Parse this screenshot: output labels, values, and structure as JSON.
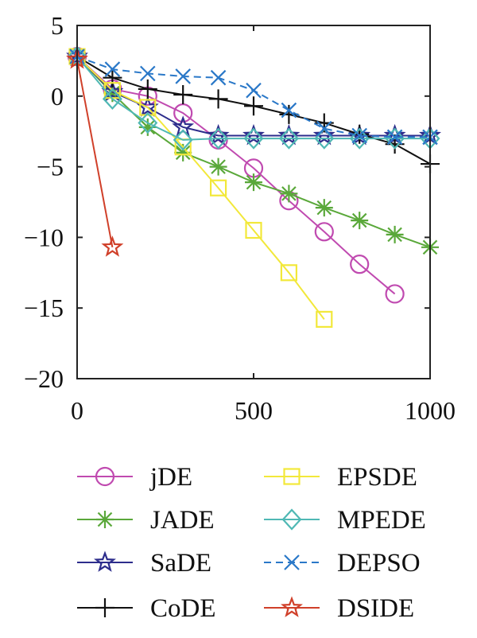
{
  "chart_data": {
    "type": "line",
    "title": "",
    "xlabel": "",
    "ylabel": "",
    "xlim": [
      0,
      1000
    ],
    "ylim": [
      -20,
      5
    ],
    "x_ticks": [
      0,
      500,
      1000
    ],
    "y_ticks": [
      5,
      0,
      -5,
      -10,
      -15,
      -20
    ],
    "x_tick_labels": [
      "0",
      "500",
      "1000"
    ],
    "y_tick_labels": [
      "5",
      "0",
      "−5",
      "−10",
      "−15",
      "−20"
    ],
    "grid": false,
    "legend_position": "bottom",
    "series": [
      {
        "name": "jDE",
        "color": "#c04ab0",
        "marker": "circle",
        "dash": false,
        "x": [
          0,
          100,
          200,
          300,
          400,
          500,
          600,
          700,
          800,
          900
        ],
        "y": [
          2.8,
          0.5,
          0.0,
          -1.2,
          -3.1,
          -5.1,
          -7.4,
          -9.6,
          -11.9,
          -14.0
        ]
      },
      {
        "name": "JADE",
        "color": "#5aa83a",
        "marker": "asterisk",
        "dash": false,
        "x": [
          0,
          100,
          200,
          300,
          400,
          500,
          600,
          700,
          800,
          900,
          1000
        ],
        "y": [
          2.8,
          0.2,
          -2.2,
          -4.0,
          -5.0,
          -6.1,
          -6.9,
          -7.9,
          -8.8,
          -9.8,
          -10.7
        ]
      },
      {
        "name": "SaDE",
        "color": "#2d2d8c",
        "marker": "star",
        "dash": false,
        "x": [
          0,
          100,
          200,
          300,
          400,
          500,
          600,
          700,
          800,
          900,
          1000
        ],
        "y": [
          2.8,
          0.3,
          -0.8,
          -2.2,
          -2.8,
          -2.8,
          -2.8,
          -2.8,
          -2.8,
          -2.8,
          -2.8
        ]
      },
      {
        "name": "CoDE",
        "color": "#111111",
        "marker": "plus",
        "dash": false,
        "x": [
          0,
          100,
          200,
          300,
          400,
          500,
          600,
          700,
          800,
          900,
          1000
        ],
        "y": [
          2.8,
          1.3,
          0.5,
          0.1,
          -0.2,
          -0.7,
          -1.3,
          -1.9,
          -2.7,
          -3.4,
          -4.8
        ]
      },
      {
        "name": "EPSDE",
        "color": "#f2e83a",
        "marker": "square",
        "dash": false,
        "x": [
          0,
          100,
          200,
          300,
          400,
          500,
          600,
          700
        ],
        "y": [
          2.8,
          0.4,
          -0.8,
          -3.6,
          -6.5,
          -9.5,
          -12.5,
          -15.8
        ]
      },
      {
        "name": "MPEDE",
        "color": "#4fb8b4",
        "marker": "diamond",
        "dash": false,
        "x": [
          0,
          100,
          200,
          300,
          400,
          500,
          600,
          700,
          800,
          900,
          1000
        ],
        "y": [
          2.8,
          -0.2,
          -1.9,
          -3.1,
          -3.0,
          -3.0,
          -3.0,
          -3.0,
          -3.0,
          -3.0,
          -3.0
        ]
      },
      {
        "name": "DEPSO",
        "color": "#2a78c8",
        "marker": "x",
        "dash": true,
        "x": [
          0,
          100,
          200,
          300,
          400,
          500,
          600,
          700,
          800,
          900,
          1000
        ],
        "y": [
          2.8,
          1.9,
          1.6,
          1.4,
          1.3,
          0.4,
          -1.0,
          -2.3,
          -2.8,
          -2.9,
          -2.9
        ]
      },
      {
        "name": "DSIDE",
        "color": "#d0402a",
        "marker": "star",
        "dash": false,
        "x": [
          0,
          100
        ],
        "y": [
          2.6,
          -10.7
        ]
      }
    ]
  }
}
